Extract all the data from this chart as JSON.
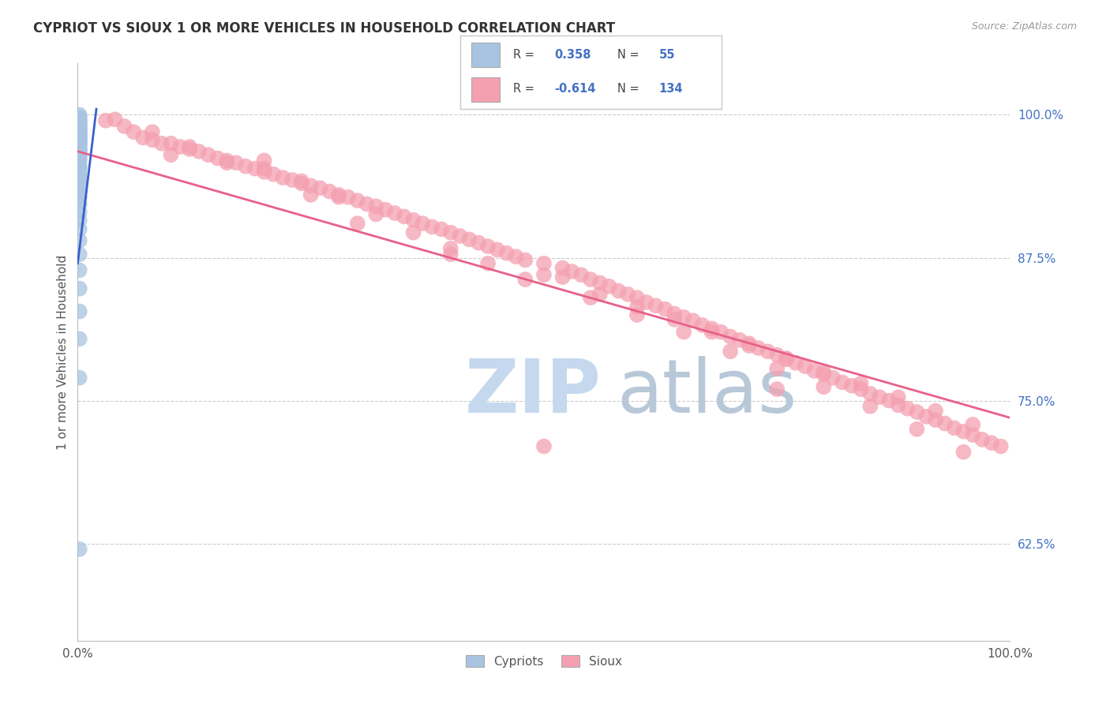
{
  "title": "CYPRIOT VS SIOUX 1 OR MORE VEHICLES IN HOUSEHOLD CORRELATION CHART",
  "source_text": "Source: ZipAtlas.com",
  "ylabel": "1 or more Vehicles in Household",
  "xlim": [
    0.0,
    1.0
  ],
  "ylim": [
    0.54,
    1.045
  ],
  "x_tick_labels": [
    "0.0%",
    "100.0%"
  ],
  "y_ticks": [
    0.625,
    0.75,
    0.875,
    1.0
  ],
  "y_tick_labels": [
    "62.5%",
    "75.0%",
    "87.5%",
    "100.0%"
  ],
  "cypriot_R": 0.358,
  "cypriot_N": 55,
  "sioux_R": -0.614,
  "sioux_N": 134,
  "cypriot_color": "#a8c4e0",
  "sioux_color": "#f4a0b0",
  "cypriot_line_color": "#3a5fcd",
  "sioux_line_color": "#e8608a",
  "watermark_zip": "ZIP",
  "watermark_atlas": "atlas",
  "watermark_color_zip": "#c5d8ee",
  "watermark_color_atlas": "#b8c8d8",
  "legend_label_cypriot": "Cypriots",
  "legend_label_sioux": "Sioux",
  "cypriot_x": [
    0.002,
    0.002,
    0.002,
    0.002,
    0.002,
    0.002,
    0.002,
    0.002,
    0.002,
    0.002,
    0.002,
    0.002,
    0.002,
    0.002,
    0.002,
    0.002,
    0.002,
    0.002,
    0.002,
    0.002,
    0.002,
    0.002,
    0.002,
    0.002,
    0.002,
    0.002,
    0.002,
    0.002,
    0.002,
    0.002,
    0.002,
    0.002,
    0.002,
    0.002,
    0.002,
    0.002,
    0.002,
    0.002,
    0.002,
    0.002,
    0.002,
    0.002,
    0.002,
    0.002,
    0.002,
    0.002,
    0.002,
    0.002,
    0.002,
    0.002,
    0.002,
    0.002,
    0.002,
    0.002,
    0.002
  ],
  "cypriot_y": [
    1.0,
    0.998,
    0.996,
    0.995,
    0.993,
    0.992,
    0.991,
    0.99,
    0.989,
    0.988,
    0.987,
    0.986,
    0.985,
    0.984,
    0.983,
    0.982,
    0.981,
    0.98,
    0.979,
    0.978,
    0.977,
    0.976,
    0.975,
    0.974,
    0.973,
    0.971,
    0.97,
    0.969,
    0.968,
    0.967,
    0.965,
    0.963,
    0.961,
    0.958,
    0.955,
    0.953,
    0.95,
    0.947,
    0.944,
    0.941,
    0.937,
    0.932,
    0.928,
    0.922,
    0.915,
    0.908,
    0.9,
    0.89,
    0.878,
    0.864,
    0.848,
    0.828,
    0.804,
    0.77,
    0.62
  ],
  "sioux_x": [
    0.03,
    0.05,
    0.06,
    0.07,
    0.08,
    0.09,
    0.1,
    0.11,
    0.12,
    0.13,
    0.14,
    0.15,
    0.16,
    0.17,
    0.18,
    0.19,
    0.2,
    0.21,
    0.22,
    0.23,
    0.24,
    0.25,
    0.26,
    0.27,
    0.28,
    0.29,
    0.3,
    0.31,
    0.32,
    0.33,
    0.34,
    0.35,
    0.36,
    0.37,
    0.38,
    0.39,
    0.4,
    0.41,
    0.42,
    0.43,
    0.44,
    0.45,
    0.46,
    0.47,
    0.48,
    0.5,
    0.52,
    0.53,
    0.54,
    0.55,
    0.56,
    0.57,
    0.58,
    0.59,
    0.6,
    0.61,
    0.62,
    0.63,
    0.64,
    0.65,
    0.66,
    0.67,
    0.68,
    0.69,
    0.7,
    0.71,
    0.72,
    0.73,
    0.74,
    0.75,
    0.76,
    0.77,
    0.78,
    0.79,
    0.8,
    0.81,
    0.82,
    0.83,
    0.84,
    0.85,
    0.86,
    0.87,
    0.88,
    0.89,
    0.9,
    0.91,
    0.92,
    0.93,
    0.94,
    0.95,
    0.96,
    0.97,
    0.98,
    0.99,
    0.04,
    0.08,
    0.12,
    0.16,
    0.2,
    0.24,
    0.28,
    0.32,
    0.36,
    0.4,
    0.44,
    0.48,
    0.52,
    0.56,
    0.6,
    0.64,
    0.68,
    0.72,
    0.76,
    0.8,
    0.84,
    0.88,
    0.92,
    0.96,
    0.1,
    0.2,
    0.3,
    0.4,
    0.5,
    0.55,
    0.6,
    0.65,
    0.7,
    0.75,
    0.8,
    0.85,
    0.9,
    0.95,
    0.25,
    0.5,
    0.75
  ],
  "sioux_y": [
    0.995,
    0.99,
    0.985,
    0.98,
    0.978,
    0.975,
    0.975,
    0.972,
    0.97,
    0.968,
    0.965,
    0.962,
    0.96,
    0.958,
    0.955,
    0.953,
    0.95,
    0.948,
    0.945,
    0.943,
    0.94,
    0.938,
    0.936,
    0.933,
    0.93,
    0.928,
    0.925,
    0.922,
    0.92,
    0.917,
    0.914,
    0.911,
    0.908,
    0.905,
    0.902,
    0.9,
    0.897,
    0.894,
    0.891,
    0.888,
    0.885,
    0.882,
    0.879,
    0.876,
    0.873,
    0.87,
    0.866,
    0.863,
    0.86,
    0.856,
    0.853,
    0.85,
    0.846,
    0.843,
    0.84,
    0.836,
    0.833,
    0.83,
    0.826,
    0.823,
    0.82,
    0.816,
    0.813,
    0.81,
    0.806,
    0.803,
    0.8,
    0.796,
    0.793,
    0.79,
    0.786,
    0.783,
    0.78,
    0.776,
    0.773,
    0.77,
    0.766,
    0.763,
    0.76,
    0.756,
    0.753,
    0.75,
    0.746,
    0.743,
    0.74,
    0.736,
    0.733,
    0.73,
    0.726,
    0.723,
    0.72,
    0.716,
    0.713,
    0.71,
    0.996,
    0.985,
    0.972,
    0.958,
    0.96,
    0.942,
    0.928,
    0.913,
    0.897,
    0.883,
    0.87,
    0.856,
    0.858,
    0.843,
    0.832,
    0.821,
    0.81,
    0.798,
    0.787,
    0.775,
    0.765,
    0.753,
    0.741,
    0.729,
    0.965,
    0.953,
    0.905,
    0.878,
    0.86,
    0.84,
    0.825,
    0.81,
    0.793,
    0.778,
    0.762,
    0.745,
    0.725,
    0.705,
    0.93,
    0.71,
    0.76
  ],
  "sioux_line_start_y": 0.968,
  "sioux_line_end_y": 0.735,
  "cypriot_line_x0": 0.0,
  "cypriot_line_x1": 0.02,
  "cypriot_line_y0": 0.87,
  "cypriot_line_y1": 1.005
}
